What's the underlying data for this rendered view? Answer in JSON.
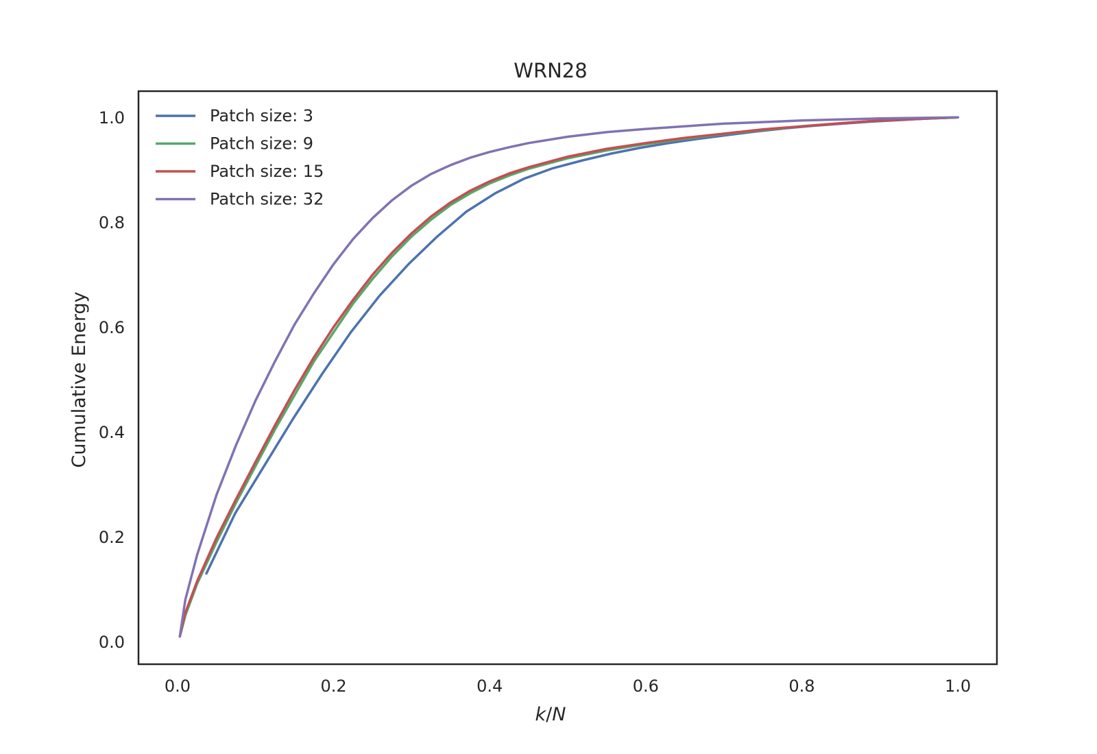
{
  "chart_data": {
    "type": "line",
    "title": "WRN28",
    "xlabel_italic": "k",
    "xlabel_sep": "/",
    "xlabel_italic2": "N",
    "ylabel": "Cumulative Energy",
    "xlim": [
      -0.05,
      1.05
    ],
    "ylim": [
      -0.043,
      1.05
    ],
    "xticks": [
      0.0,
      0.2,
      0.4,
      0.6,
      0.8,
      1.0
    ],
    "xtick_labels": [
      "0.0",
      "0.2",
      "0.4",
      "0.6",
      "0.8",
      "1.0"
    ],
    "yticks": [
      0.0,
      0.2,
      0.4,
      0.6,
      0.8,
      1.0
    ],
    "ytick_labels": [
      "0.0",
      "0.2",
      "0.4",
      "0.6",
      "0.8",
      "1.0"
    ],
    "grid": false,
    "legend_position": "top-left",
    "series": [
      {
        "name": "Patch size: 3",
        "color": "#4c72b0",
        "x": [
          0.037,
          0.074,
          0.111,
          0.148,
          0.185,
          0.222,
          0.259,
          0.296,
          0.333,
          0.37,
          0.407,
          0.444,
          0.481,
          0.519,
          0.556,
          0.593,
          0.63,
          0.667,
          0.704,
          0.741,
          0.778,
          0.815,
          0.852,
          0.889,
          0.926,
          0.963,
          1.0
        ],
        "y": [
          0.13,
          0.245,
          0.335,
          0.425,
          0.51,
          0.59,
          0.66,
          0.72,
          0.773,
          0.82,
          0.855,
          0.883,
          0.903,
          0.918,
          0.931,
          0.942,
          0.951,
          0.959,
          0.966,
          0.973,
          0.979,
          0.984,
          0.988,
          0.992,
          0.995,
          0.998,
          1.0
        ]
      },
      {
        "name": "Patch size: 9",
        "color": "#55a868",
        "x": [
          0.003,
          0.01,
          0.025,
          0.05,
          0.075,
          0.1,
          0.125,
          0.15,
          0.175,
          0.2,
          0.225,
          0.25,
          0.275,
          0.3,
          0.325,
          0.35,
          0.375,
          0.4,
          0.425,
          0.45,
          0.5,
          0.55,
          0.6,
          0.65,
          0.7,
          0.75,
          0.8,
          0.85,
          0.9,
          0.95,
          1.0
        ],
        "y": [
          0.01,
          0.05,
          0.11,
          0.19,
          0.265,
          0.335,
          0.405,
          0.47,
          0.535,
          0.59,
          0.645,
          0.692,
          0.735,
          0.773,
          0.805,
          0.833,
          0.855,
          0.874,
          0.889,
          0.902,
          0.922,
          0.937,
          0.949,
          0.959,
          0.968,
          0.976,
          0.983,
          0.989,
          0.994,
          0.997,
          1.0
        ]
      },
      {
        "name": "Patch size: 15",
        "color": "#c44e52",
        "x": [
          0.003,
          0.01,
          0.025,
          0.05,
          0.075,
          0.1,
          0.125,
          0.15,
          0.175,
          0.2,
          0.225,
          0.25,
          0.275,
          0.3,
          0.325,
          0.35,
          0.375,
          0.4,
          0.425,
          0.45,
          0.5,
          0.55,
          0.6,
          0.65,
          0.7,
          0.75,
          0.8,
          0.85,
          0.9,
          0.95,
          1.0
        ],
        "y": [
          0.01,
          0.055,
          0.115,
          0.198,
          0.272,
          0.343,
          0.413,
          0.48,
          0.543,
          0.6,
          0.652,
          0.7,
          0.742,
          0.779,
          0.811,
          0.838,
          0.86,
          0.878,
          0.893,
          0.905,
          0.925,
          0.94,
          0.951,
          0.961,
          0.969,
          0.977,
          0.983,
          0.989,
          0.994,
          0.997,
          1.0
        ]
      },
      {
        "name": "Patch size: 32",
        "color": "#8172b2",
        "x": [
          0.003,
          0.01,
          0.025,
          0.05,
          0.075,
          0.1,
          0.125,
          0.15,
          0.175,
          0.2,
          0.225,
          0.25,
          0.275,
          0.3,
          0.325,
          0.35,
          0.375,
          0.4,
          0.425,
          0.45,
          0.5,
          0.55,
          0.6,
          0.65,
          0.7,
          0.75,
          0.8,
          0.85,
          0.9,
          0.95,
          1.0
        ],
        "y": [
          0.01,
          0.08,
          0.165,
          0.28,
          0.375,
          0.46,
          0.535,
          0.605,
          0.665,
          0.72,
          0.768,
          0.808,
          0.842,
          0.87,
          0.892,
          0.909,
          0.923,
          0.934,
          0.943,
          0.951,
          0.963,
          0.972,
          0.978,
          0.983,
          0.988,
          0.991,
          0.994,
          0.996,
          0.998,
          0.999,
          1.0
        ]
      }
    ]
  }
}
